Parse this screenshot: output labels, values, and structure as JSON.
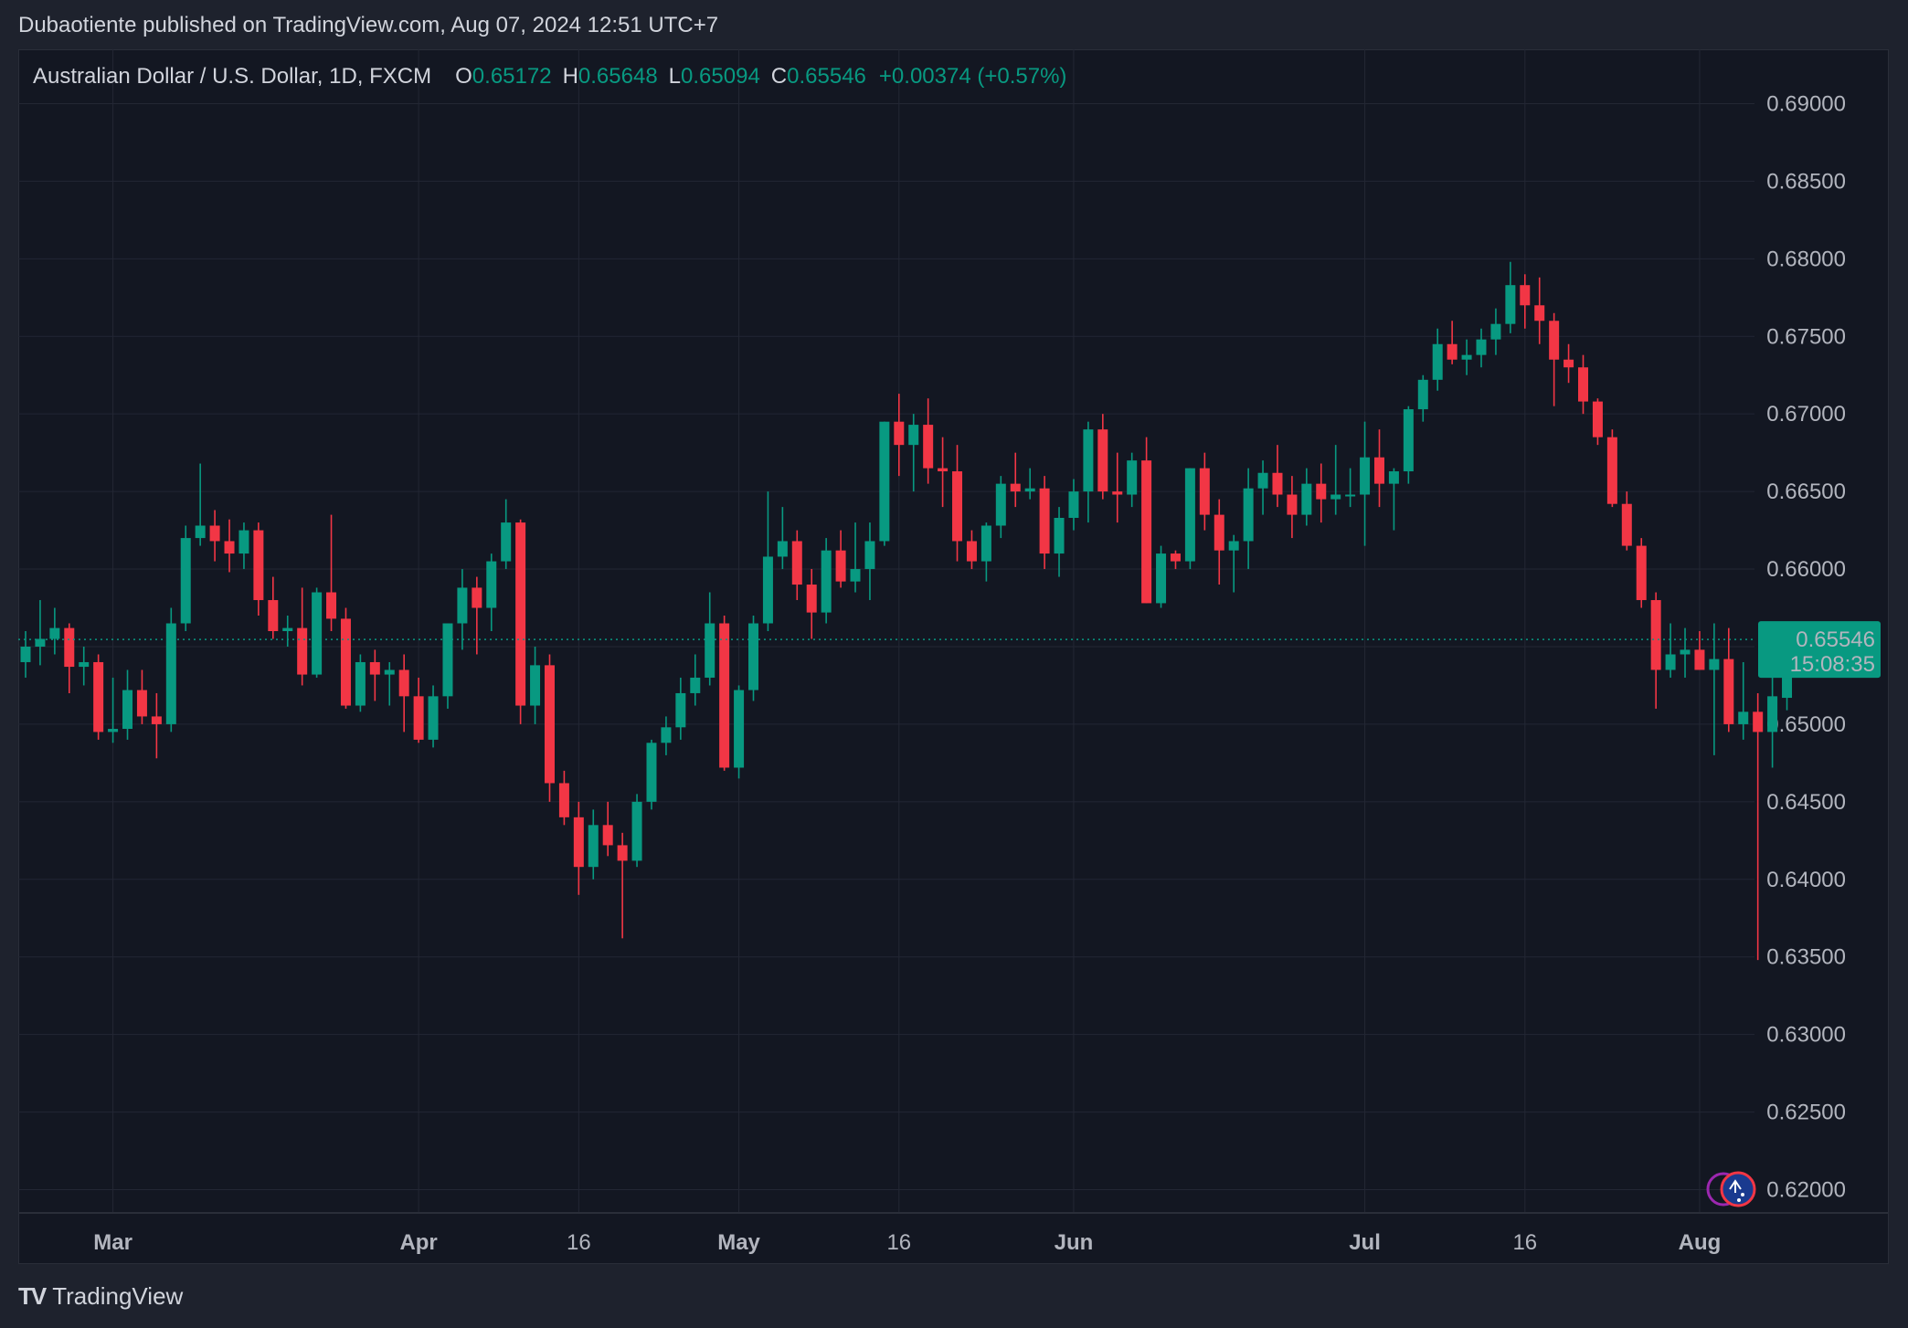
{
  "publisher_line": "Dubaotiente published on TradingView.com, Aug 07, 2024 12:51 UTC+7",
  "legend": {
    "symbol": "Australian Dollar / U.S. Dollar, 1D, FXCM",
    "open_label": "O",
    "open": "0.65172",
    "high_label": "H",
    "high": "0.65648",
    "low_label": "L",
    "low": "0.65094",
    "close_label": "C",
    "close": "0.65546",
    "change": "+0.00374 (+0.57%)"
  },
  "price_badge": {
    "price": "0.65546",
    "countdown": "15:08:35"
  },
  "logo": {
    "icon": "TV",
    "text": "TradingView"
  },
  "colors": {
    "up": "#089981",
    "down": "#f23645",
    "background": "#131722",
    "frame": "#1e222d",
    "grid": "#232734",
    "axis_text": "#b2b5be"
  },
  "icons": [
    "flag-icon-australia",
    "event-marker-icon"
  ],
  "chart_data": {
    "type": "candlestick",
    "title": "Australian Dollar / U.S. Dollar, 1D, FXCM",
    "ylim": [
      0.6185,
      0.6935
    ],
    "y_ticks": [
      "0.69000",
      "0.68500",
      "0.68000",
      "0.67500",
      "0.67000",
      "0.66500",
      "0.66000",
      "0.65500",
      "0.65000",
      "0.64500",
      "0.64000",
      "0.63500",
      "0.63000",
      "0.62500",
      "0.62000"
    ],
    "x_ticks": [
      {
        "label": "Mar",
        "index": 6
      },
      {
        "label": "Apr",
        "index": 27
      },
      {
        "label": "16",
        "index": 38
      },
      {
        "label": "May",
        "index": 49
      },
      {
        "label": "16",
        "index": 60
      },
      {
        "label": "Jun",
        "index": 72
      },
      {
        "label": "Jul",
        "index": 92
      },
      {
        "label": "16",
        "index": 103
      },
      {
        "label": "Aug",
        "index": 115
      }
    ],
    "last_price": 0.65546,
    "ohlc": [
      [
        0.654,
        0.656,
        0.653,
        0.655
      ],
      [
        0.655,
        0.658,
        0.6538,
        0.6555
      ],
      [
        0.6555,
        0.6575,
        0.6545,
        0.6562
      ],
      [
        0.6562,
        0.6565,
        0.652,
        0.6537
      ],
      [
        0.6537,
        0.655,
        0.6525,
        0.654
      ],
      [
        0.654,
        0.6545,
        0.649,
        0.6495
      ],
      [
        0.6495,
        0.653,
        0.6488,
        0.6497
      ],
      [
        0.6497,
        0.6535,
        0.649,
        0.6522
      ],
      [
        0.6522,
        0.6535,
        0.65,
        0.6505
      ],
      [
        0.6505,
        0.652,
        0.6478,
        0.65
      ],
      [
        0.65,
        0.6575,
        0.6495,
        0.6565
      ],
      [
        0.6565,
        0.6628,
        0.656,
        0.662
      ],
      [
        0.662,
        0.6668,
        0.6615,
        0.6628
      ],
      [
        0.6628,
        0.6638,
        0.6605,
        0.6618
      ],
      [
        0.6618,
        0.6632,
        0.6598,
        0.661
      ],
      [
        0.661,
        0.663,
        0.66,
        0.6625
      ],
      [
        0.6625,
        0.663,
        0.657,
        0.658
      ],
      [
        0.658,
        0.6595,
        0.6555,
        0.656
      ],
      [
        0.656,
        0.657,
        0.655,
        0.6562
      ],
      [
        0.6562,
        0.6588,
        0.6525,
        0.6532
      ],
      [
        0.6532,
        0.6588,
        0.653,
        0.6585
      ],
      [
        0.6585,
        0.6635,
        0.656,
        0.6568
      ],
      [
        0.6568,
        0.6575,
        0.651,
        0.6512
      ],
      [
        0.6512,
        0.6545,
        0.6508,
        0.654
      ],
      [
        0.654,
        0.6548,
        0.6515,
        0.6532
      ],
      [
        0.6532,
        0.654,
        0.6512,
        0.6535
      ],
      [
        0.6535,
        0.6545,
        0.6495,
        0.6518
      ],
      [
        0.6518,
        0.653,
        0.6488,
        0.649
      ],
      [
        0.649,
        0.6525,
        0.6485,
        0.6518
      ],
      [
        0.6518,
        0.6565,
        0.651,
        0.6565
      ],
      [
        0.6565,
        0.66,
        0.6548,
        0.6588
      ],
      [
        0.6588,
        0.6595,
        0.6545,
        0.6575
      ],
      [
        0.6575,
        0.661,
        0.656,
        0.6605
      ],
      [
        0.6605,
        0.6645,
        0.66,
        0.663
      ],
      [
        0.663,
        0.6632,
        0.65,
        0.6512
      ],
      [
        0.6512,
        0.655,
        0.65,
        0.6538
      ],
      [
        0.6538,
        0.6545,
        0.645,
        0.6462
      ],
      [
        0.6462,
        0.647,
        0.6435,
        0.644
      ],
      [
        0.644,
        0.645,
        0.639,
        0.6408
      ],
      [
        0.6408,
        0.6445,
        0.64,
        0.6435
      ],
      [
        0.6435,
        0.645,
        0.6415,
        0.6422
      ],
      [
        0.6422,
        0.643,
        0.6362,
        0.6412
      ],
      [
        0.6412,
        0.6455,
        0.6408,
        0.645
      ],
      [
        0.645,
        0.649,
        0.6445,
        0.6488
      ],
      [
        0.6488,
        0.6505,
        0.648,
        0.6498
      ],
      [
        0.6498,
        0.653,
        0.649,
        0.652
      ],
      [
        0.652,
        0.6545,
        0.6512,
        0.653
      ],
      [
        0.653,
        0.6585,
        0.6525,
        0.6565
      ],
      [
        0.6565,
        0.657,
        0.647,
        0.6472
      ],
      [
        0.6472,
        0.6525,
        0.6465,
        0.6522
      ],
      [
        0.6522,
        0.657,
        0.6515,
        0.6565
      ],
      [
        0.6565,
        0.665,
        0.656,
        0.6608
      ],
      [
        0.6608,
        0.664,
        0.66,
        0.6618
      ],
      [
        0.6618,
        0.6625,
        0.658,
        0.659
      ],
      [
        0.659,
        0.66,
        0.6555,
        0.6572
      ],
      [
        0.6572,
        0.662,
        0.6565,
        0.6612
      ],
      [
        0.6612,
        0.6625,
        0.6588,
        0.6592
      ],
      [
        0.6592,
        0.663,
        0.6585,
        0.66
      ],
      [
        0.66,
        0.663,
        0.658,
        0.6618
      ],
      [
        0.6618,
        0.6695,
        0.6615,
        0.6695
      ],
      [
        0.6695,
        0.6713,
        0.666,
        0.668
      ],
      [
        0.668,
        0.67,
        0.665,
        0.6693
      ],
      [
        0.6693,
        0.671,
        0.6655,
        0.6665
      ],
      [
        0.6665,
        0.6685,
        0.664,
        0.6663
      ],
      [
        0.6663,
        0.668,
        0.6605,
        0.6618
      ],
      [
        0.6618,
        0.6625,
        0.66,
        0.6605
      ],
      [
        0.6605,
        0.663,
        0.6592,
        0.6628
      ],
      [
        0.6628,
        0.666,
        0.662,
        0.6655
      ],
      [
        0.6655,
        0.6675,
        0.664,
        0.665
      ],
      [
        0.665,
        0.6665,
        0.6645,
        0.6652
      ],
      [
        0.6652,
        0.666,
        0.66,
        0.661
      ],
      [
        0.661,
        0.664,
        0.6595,
        0.6633
      ],
      [
        0.6633,
        0.6658,
        0.6625,
        0.665
      ],
      [
        0.665,
        0.6695,
        0.663,
        0.669
      ],
      [
        0.669,
        0.67,
        0.6645,
        0.665
      ],
      [
        0.665,
        0.6675,
        0.663,
        0.6648
      ],
      [
        0.6648,
        0.6675,
        0.664,
        0.667
      ],
      [
        0.667,
        0.6685,
        0.6578,
        0.6578
      ],
      [
        0.6578,
        0.6615,
        0.6575,
        0.661
      ],
      [
        0.661,
        0.6612,
        0.66,
        0.6605
      ],
      [
        0.6605,
        0.6665,
        0.66,
        0.6665
      ],
      [
        0.6665,
        0.6675,
        0.6625,
        0.6635
      ],
      [
        0.6635,
        0.6645,
        0.659,
        0.6612
      ],
      [
        0.6612,
        0.6622,
        0.6585,
        0.6618
      ],
      [
        0.6618,
        0.6665,
        0.66,
        0.6652
      ],
      [
        0.6652,
        0.667,
        0.6635,
        0.6662
      ],
      [
        0.6662,
        0.668,
        0.664,
        0.6648
      ],
      [
        0.6648,
        0.666,
        0.662,
        0.6635
      ],
      [
        0.6635,
        0.6665,
        0.6628,
        0.6655
      ],
      [
        0.6655,
        0.6668,
        0.663,
        0.6645
      ],
      [
        0.6645,
        0.668,
        0.6635,
        0.6648
      ],
      [
        0.6648,
        0.6665,
        0.664,
        0.6648
      ],
      [
        0.6648,
        0.6695,
        0.6615,
        0.6672
      ],
      [
        0.6672,
        0.669,
        0.664,
        0.6655
      ],
      [
        0.6655,
        0.6665,
        0.6625,
        0.6663
      ],
      [
        0.6663,
        0.6705,
        0.6655,
        0.6703
      ],
      [
        0.6703,
        0.6725,
        0.6695,
        0.6722
      ],
      [
        0.6722,
        0.6755,
        0.6715,
        0.6745
      ],
      [
        0.6745,
        0.676,
        0.6732,
        0.6735
      ],
      [
        0.6735,
        0.6748,
        0.6725,
        0.6738
      ],
      [
        0.6738,
        0.6755,
        0.673,
        0.6748
      ],
      [
        0.6748,
        0.6768,
        0.6738,
        0.6758
      ],
      [
        0.6758,
        0.6798,
        0.6752,
        0.6783
      ],
      [
        0.6783,
        0.679,
        0.6755,
        0.677
      ],
      [
        0.677,
        0.6788,
        0.6745,
        0.676
      ],
      [
        0.676,
        0.6765,
        0.6705,
        0.6735
      ],
      [
        0.6735,
        0.6745,
        0.672,
        0.673
      ],
      [
        0.673,
        0.6738,
        0.67,
        0.6708
      ],
      [
        0.6708,
        0.671,
        0.668,
        0.6685
      ],
      [
        0.6685,
        0.669,
        0.664,
        0.6642
      ],
      [
        0.6642,
        0.665,
        0.6612,
        0.6615
      ],
      [
        0.6615,
        0.662,
        0.6575,
        0.658
      ],
      [
        0.658,
        0.6585,
        0.651,
        0.6535
      ],
      [
        0.6535,
        0.6565,
        0.653,
        0.6545
      ],
      [
        0.6545,
        0.6562,
        0.653,
        0.6548
      ],
      [
        0.6548,
        0.656,
        0.6535,
        0.6535
      ],
      [
        0.6535,
        0.6565,
        0.648,
        0.6542
      ],
      [
        0.6542,
        0.6562,
        0.6495,
        0.65
      ],
      [
        0.65,
        0.654,
        0.649,
        0.6508
      ],
      [
        0.6508,
        0.652,
        0.6348,
        0.6495
      ],
      [
        0.6495,
        0.6545,
        0.6472,
        0.6518
      ],
      [
        0.6517,
        0.6565,
        0.6509,
        0.6555
      ]
    ]
  }
}
